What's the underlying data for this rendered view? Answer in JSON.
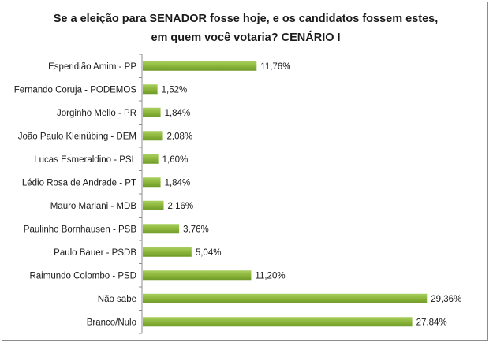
{
  "chart_data": {
    "type": "bar",
    "orientation": "horizontal",
    "title_line1": "Se a eleição para SENADOR fosse hoje, e os candidatos fossem estes,",
    "title_line2": "em quem você votaria? CENÁRIO I",
    "categories": [
      "Esperidião Amim - PP",
      "Fernando Coruja - PODEMOS",
      "Jorginho Mello - PR",
      "João Paulo Kleinübing - DEM",
      "Lucas Esmeraldino - PSL",
      "Lédio Rosa de Andrade - PT",
      "Mauro Mariani - MDB",
      "Paulinho Bornhausen - PSB",
      "Paulo Bauer - PSDB",
      "Raimundo Colombo - PSD",
      "Não sabe",
      "Branco/Nulo"
    ],
    "values": [
      11.76,
      1.52,
      1.84,
      2.08,
      1.6,
      1.84,
      2.16,
      3.76,
      5.04,
      11.2,
      29.36,
      27.84
    ],
    "value_labels": [
      "11,76%",
      "1,52%",
      "1,84%",
      "2,08%",
      "1,60%",
      "1,84%",
      "2,16%",
      "3,76%",
      "5,04%",
      "11,20%",
      "29,36%",
      "27,84%"
    ],
    "bar_color": "#8cb63c",
    "grid": false,
    "legend": "none"
  }
}
